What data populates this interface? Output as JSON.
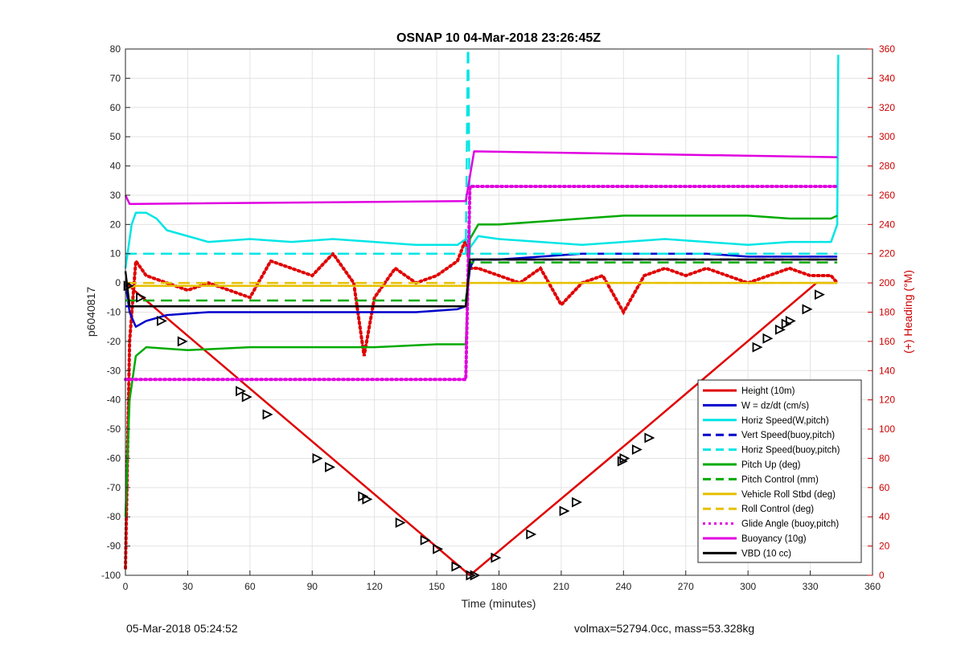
{
  "chart_data": {
    "type": "line",
    "title": "OSNAP 10 04-Mar-2018 23:26:45Z",
    "xlabel": "Time (minutes)",
    "ylabel": "p6040817",
    "y2label": "(+) Heading (°M)",
    "xlim": [
      0,
      360
    ],
    "ylim": [
      -100,
      80
    ],
    "y2lim": [
      0,
      360
    ],
    "xticks": [
      0,
      30,
      60,
      90,
      120,
      150,
      180,
      210,
      240,
      270,
      300,
      330,
      360
    ],
    "yticks": [
      -100,
      -90,
      -80,
      -70,
      -60,
      -50,
      -40,
      -30,
      -20,
      -10,
      0,
      10,
      20,
      30,
      40,
      50,
      60,
      70,
      80
    ],
    "y2ticks": [
      0,
      20,
      40,
      60,
      80,
      100,
      120,
      140,
      160,
      180,
      200,
      220,
      240,
      260,
      280,
      300,
      320,
      340,
      360
    ],
    "grid": true,
    "legend_position": "bottom-right",
    "series": [
      {
        "name": "Height (10m)",
        "color": "#e00000",
        "style": "solid",
        "x": [
          0,
          83,
          166,
          250,
          333,
          343
        ],
        "y": [
          0,
          -50,
          -100,
          -50,
          0,
          0
        ]
      },
      {
        "name": "W = dz/dt (cm/s)",
        "color": "#0000cc",
        "style": "solid",
        "x": [
          0,
          2,
          5,
          10,
          20,
          40,
          60,
          80,
          100,
          120,
          140,
          160,
          164,
          166,
          168,
          180,
          200,
          220,
          240,
          260,
          280,
          300,
          320,
          340,
          343
        ],
        "y": [
          0,
          -10,
          -15,
          -13,
          -11,
          -10,
          -10,
          -10,
          -10,
          -10,
          -10,
          -9,
          -8,
          5,
          8,
          8,
          9,
          10,
          10,
          10,
          10,
          9,
          9,
          9,
          9
        ]
      },
      {
        "name": "Horiz Speed(W,pitch)",
        "color": "#00e5e5",
        "style": "solid",
        "x": [
          0,
          3,
          5,
          10,
          15,
          20,
          30,
          40,
          60,
          80,
          100,
          120,
          140,
          160,
          164,
          166,
          170,
          180,
          200,
          220,
          240,
          260,
          280,
          300,
          320,
          340,
          343,
          343.5
        ],
        "y": [
          5,
          20,
          24,
          24,
          22,
          18,
          16,
          14,
          15,
          14,
          15,
          14,
          13,
          13,
          15,
          12,
          16,
          15,
          14,
          13,
          14,
          15,
          14,
          13,
          14,
          14,
          20,
          78
        ]
      },
      {
        "name": "Vert Speed(buoy,pitch)",
        "color": "#0000cc",
        "style": "dashed",
        "x": [
          0,
          164,
          166,
          343
        ],
        "y": [
          -8,
          -8,
          8,
          8
        ]
      },
      {
        "name": "Horiz Speed(buoy,pitch)",
        "color": "#00e5e5",
        "style": "dashed",
        "x": [
          0,
          164,
          165,
          165.2,
          166,
          343
        ],
        "y": [
          10,
          10,
          80,
          80,
          10,
          10
        ]
      },
      {
        "name": "Pitch Up (deg)",
        "color": "#00aa00",
        "style": "solid",
        "x": [
          0,
          2,
          5,
          10,
          30,
          60,
          90,
          120,
          150,
          164,
          166,
          170,
          180,
          200,
          220,
          240,
          260,
          280,
          300,
          320,
          340,
          343
        ],
        "y": [
          -80,
          -40,
          -25,
          -22,
          -23,
          -22,
          -22,
          -22,
          -21,
          -21,
          15,
          20,
          20,
          21,
          22,
          23,
          23,
          23,
          23,
          22,
          22,
          23
        ]
      },
      {
        "name": "Pitch Control (mm)",
        "color": "#00aa00",
        "style": "dashed",
        "x": [
          0,
          164,
          166,
          343
        ],
        "y": [
          -6,
          -6,
          7,
          7
        ]
      },
      {
        "name": "Vehicle Roll Stbd (deg)",
        "color": "#e6c000",
        "style": "solid",
        "x": [
          0,
          5,
          40,
          80,
          120,
          160,
          164,
          166,
          200,
          240,
          280,
          320,
          343
        ],
        "y": [
          -2,
          -1,
          -1,
          -1,
          -1,
          -1,
          -1,
          0,
          0,
          0,
          0,
          0,
          0
        ]
      },
      {
        "name": "Roll Control (deg)",
        "color": "#e6c000",
        "style": "dashed",
        "x": [
          0,
          343
        ],
        "y": [
          0,
          0
        ]
      },
      {
        "name": "Glide Angle (buoy,pitch)",
        "color": "#e000e0",
        "style": "dotted",
        "x": [
          0,
          164,
          166,
          343
        ],
        "y": [
          -33,
          -33,
          33,
          33
        ]
      },
      {
        "name": "Buoyancy (10g)",
        "color": "#e000e0",
        "style": "solid",
        "x": [
          0,
          2,
          164,
          168,
          343
        ],
        "y": [
          30,
          27,
          28,
          45,
          43
        ]
      },
      {
        "name": "VBD (10 cc)",
        "color": "#000000",
        "style": "solid",
        "x": [
          0,
          1,
          2,
          164,
          166,
          343
        ],
        "y": [
          4,
          -2,
          -8,
          -8,
          8,
          8
        ]
      }
    ],
    "heading": {
      "name": "(+) Heading (°M)",
      "color": "#e00000",
      "axis": "right",
      "x": [
        0,
        2,
        5,
        10,
        20,
        30,
        40,
        50,
        60,
        70,
        80,
        90,
        100,
        110,
        115,
        120,
        130,
        140,
        150,
        160,
        164,
        166,
        170,
        180,
        190,
        200,
        210,
        220,
        230,
        240,
        250,
        260,
        270,
        280,
        290,
        300,
        310,
        320,
        330,
        340,
        343
      ],
      "y": [
        5,
        160,
        215,
        205,
        200,
        195,
        200,
        195,
        190,
        215,
        210,
        205,
        220,
        200,
        150,
        190,
        210,
        200,
        205,
        215,
        230,
        210,
        210,
        205,
        200,
        210,
        185,
        200,
        205,
        180,
        205,
        210,
        205,
        210,
        205,
        200,
        205,
        210,
        205,
        205,
        200
      ]
    },
    "markers": {
      "x": [
        1,
        7,
        17,
        27,
        55,
        58,
        68,
        92,
        98,
        114,
        116,
        132,
        144,
        150,
        159,
        166,
        168,
        178,
        195,
        211,
        217,
        239,
        240,
        246,
        252,
        304,
        309,
        315,
        318,
        320,
        328,
        334
      ],
      "y": [
        -1,
        -5,
        -13,
        -20,
        -37,
        -39,
        -45,
        -60,
        -63,
        -73,
        -74,
        -82,
        -88,
        -91,
        -97,
        -100,
        -100,
        -94,
        -86,
        -78,
        -75,
        -61,
        -60,
        -57,
        -53,
        -22,
        -19,
        -16,
        -14,
        -13,
        -9,
        -4
      ]
    },
    "annotations": {
      "bottom_left": "05-Mar-2018 05:24:52",
      "bottom_right": "volmax=52794.0cc, mass=53.328kg"
    }
  }
}
